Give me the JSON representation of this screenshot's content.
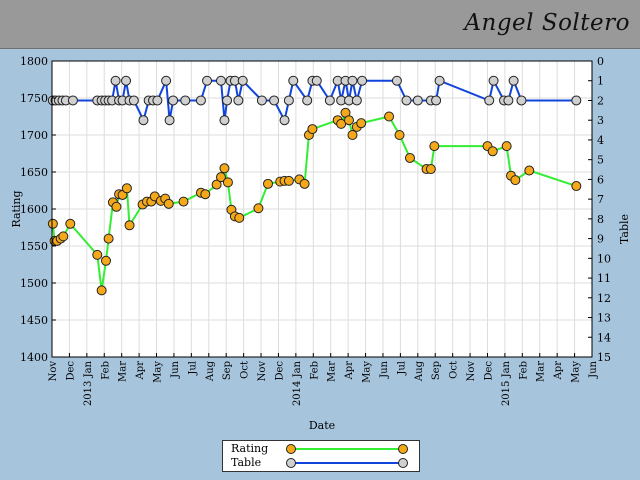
{
  "header": {
    "player_name": "Angel Soltero"
  },
  "colors": {
    "background": "#a7c4dd",
    "plot_bg": "#ffffff",
    "grid": "#dddddd",
    "rating_line": "#33ee33",
    "rating_marker": "#f5a91a",
    "table_line": "#1144dd",
    "table_marker": "#d0d0d0"
  },
  "chart_data": {
    "type": "line",
    "xlabel": "Date",
    "ylabel": "Rating",
    "y2label": "Table",
    "ylim": [
      1400,
      1800
    ],
    "y2lim": [
      15,
      0
    ],
    "y_ticks": [
      1400,
      1450,
      1500,
      1550,
      1600,
      1650,
      1700,
      1750,
      1800
    ],
    "y2_ticks": [
      0,
      1,
      2,
      3,
      4,
      5,
      6,
      7,
      8,
      9,
      10,
      11,
      12,
      13,
      14,
      15
    ],
    "x_ticks": [
      {
        "m": 0,
        "label": "Nov"
      },
      {
        "m": 1,
        "label": "Dec"
      },
      {
        "m": 2,
        "label": "2013 Jan"
      },
      {
        "m": 3,
        "label": "Feb"
      },
      {
        "m": 4,
        "label": "Mar"
      },
      {
        "m": 5,
        "label": "Apr"
      },
      {
        "m": 6,
        "label": "May"
      },
      {
        "m": 7,
        "label": "Jun"
      },
      {
        "m": 8,
        "label": "Jul"
      },
      {
        "m": 9,
        "label": "Aug"
      },
      {
        "m": 10,
        "label": "Sep"
      },
      {
        "m": 11,
        "label": "Oct"
      },
      {
        "m": 12,
        "label": "Nov"
      },
      {
        "m": 13,
        "label": "Dec"
      },
      {
        "m": 14,
        "label": "2014 Jan"
      },
      {
        "m": 15,
        "label": "Feb"
      },
      {
        "m": 16,
        "label": "Mar"
      },
      {
        "m": 17,
        "label": "Apr"
      },
      {
        "m": 18,
        "label": "May"
      },
      {
        "m": 19,
        "label": "Jun"
      },
      {
        "m": 20,
        "label": "Jul"
      },
      {
        "m": 21,
        "label": "Aug"
      },
      {
        "m": 22,
        "label": "Sep"
      },
      {
        "m": 23,
        "label": "Oct"
      },
      {
        "m": 24,
        "label": "Nov"
      },
      {
        "m": 25,
        "label": "Dec"
      },
      {
        "m": 26,
        "label": "2015 Jan"
      },
      {
        "m": 27,
        "label": "Feb"
      },
      {
        "m": 28,
        "label": "Mar"
      },
      {
        "m": 29,
        "label": "Apr"
      },
      {
        "m": 30,
        "label": "May"
      },
      {
        "m": 31,
        "label": "Jun"
      }
    ],
    "x_range": [
      0,
      31
    ],
    "grid": true,
    "legend_position": "bottom-center",
    "series": [
      {
        "name": "Rating",
        "axis": "left",
        "points": [
          [
            0.05,
            1580
          ],
          [
            0.15,
            1557
          ],
          [
            0.3,
            1557
          ],
          [
            0.5,
            1560
          ],
          [
            0.65,
            1563
          ],
          [
            1.05,
            1580
          ],
          [
            2.6,
            1538
          ],
          [
            2.85,
            1490
          ],
          [
            3.1,
            1530
          ],
          [
            3.25,
            1560
          ],
          [
            3.5,
            1609
          ],
          [
            3.7,
            1603
          ],
          [
            3.85,
            1620
          ],
          [
            4.05,
            1619
          ],
          [
            4.3,
            1628
          ],
          [
            4.45,
            1578
          ],
          [
            5.2,
            1606
          ],
          [
            5.45,
            1610
          ],
          [
            5.7,
            1610
          ],
          [
            5.9,
            1617
          ],
          [
            6.25,
            1611
          ],
          [
            6.5,
            1614
          ],
          [
            6.7,
            1607
          ],
          [
            7.55,
            1610
          ],
          [
            8.55,
            1622
          ],
          [
            8.8,
            1620
          ],
          [
            9.45,
            1633
          ],
          [
            9.7,
            1643
          ],
          [
            9.9,
            1655
          ],
          [
            10.1,
            1636
          ],
          [
            10.3,
            1599
          ],
          [
            10.5,
            1590
          ],
          [
            10.75,
            1588
          ],
          [
            11.85,
            1601
          ],
          [
            12.4,
            1634
          ],
          [
            13.1,
            1637
          ],
          [
            13.35,
            1638
          ],
          [
            13.6,
            1638
          ],
          [
            14.2,
            1640
          ],
          [
            14.5,
            1634
          ],
          [
            14.75,
            1700
          ],
          [
            14.95,
            1708
          ],
          [
            16.4,
            1720
          ],
          [
            16.6,
            1715
          ],
          [
            16.85,
            1730
          ],
          [
            17.05,
            1720
          ],
          [
            17.25,
            1700
          ],
          [
            17.5,
            1711
          ],
          [
            17.75,
            1716
          ],
          [
            19.35,
            1725
          ],
          [
            19.95,
            1700
          ],
          [
            20.55,
            1669
          ],
          [
            21.5,
            1654
          ],
          [
            21.75,
            1654
          ],
          [
            21.95,
            1685
          ],
          [
            25.0,
            1685
          ],
          [
            25.3,
            1678
          ],
          [
            26.1,
            1685
          ],
          [
            26.35,
            1645
          ],
          [
            26.6,
            1639
          ],
          [
            27.4,
            1652
          ],
          [
            30.1,
            1631
          ]
        ]
      },
      {
        "name": "Table",
        "axis": "right",
        "points": [
          [
            0.05,
            2
          ],
          [
            0.2,
            2
          ],
          [
            0.4,
            2
          ],
          [
            0.6,
            2
          ],
          [
            0.8,
            2
          ],
          [
            1.2,
            2
          ],
          [
            2.6,
            2
          ],
          [
            2.85,
            2
          ],
          [
            3.05,
            2
          ],
          [
            3.25,
            2
          ],
          [
            3.45,
            2
          ],
          [
            3.65,
            1
          ],
          [
            3.85,
            2
          ],
          [
            4.05,
            2
          ],
          [
            4.25,
            1
          ],
          [
            4.45,
            2
          ],
          [
            4.7,
            2
          ],
          [
            5.25,
            3
          ],
          [
            5.55,
            2
          ],
          [
            5.8,
            2
          ],
          [
            6.05,
            2
          ],
          [
            6.55,
            1
          ],
          [
            6.75,
            3
          ],
          [
            6.95,
            2
          ],
          [
            7.65,
            2
          ],
          [
            8.55,
            2
          ],
          [
            8.9,
            1
          ],
          [
            9.7,
            1
          ],
          [
            9.9,
            3
          ],
          [
            10.05,
            2
          ],
          [
            10.25,
            1
          ],
          [
            10.5,
            1
          ],
          [
            10.7,
            2
          ],
          [
            10.95,
            1
          ],
          [
            12.05,
            2
          ],
          [
            12.75,
            2
          ],
          [
            13.35,
            3
          ],
          [
            13.6,
            2
          ],
          [
            13.85,
            1
          ],
          [
            14.65,
            2
          ],
          [
            14.95,
            1
          ],
          [
            15.2,
            1
          ],
          [
            15.95,
            2
          ],
          [
            16.4,
            1
          ],
          [
            16.6,
            2
          ],
          [
            16.85,
            1
          ],
          [
            17.05,
            2
          ],
          [
            17.25,
            1
          ],
          [
            17.5,
            2
          ],
          [
            17.8,
            1
          ],
          [
            19.8,
            1
          ],
          [
            20.35,
            2
          ],
          [
            21.0,
            2
          ],
          [
            21.75,
            2
          ],
          [
            22.05,
            2
          ],
          [
            22.25,
            1
          ],
          [
            25.1,
            2
          ],
          [
            25.35,
            1
          ],
          [
            25.95,
            2
          ],
          [
            26.2,
            2
          ],
          [
            26.5,
            1
          ],
          [
            26.95,
            2
          ],
          [
            30.1,
            2
          ]
        ]
      }
    ]
  }
}
